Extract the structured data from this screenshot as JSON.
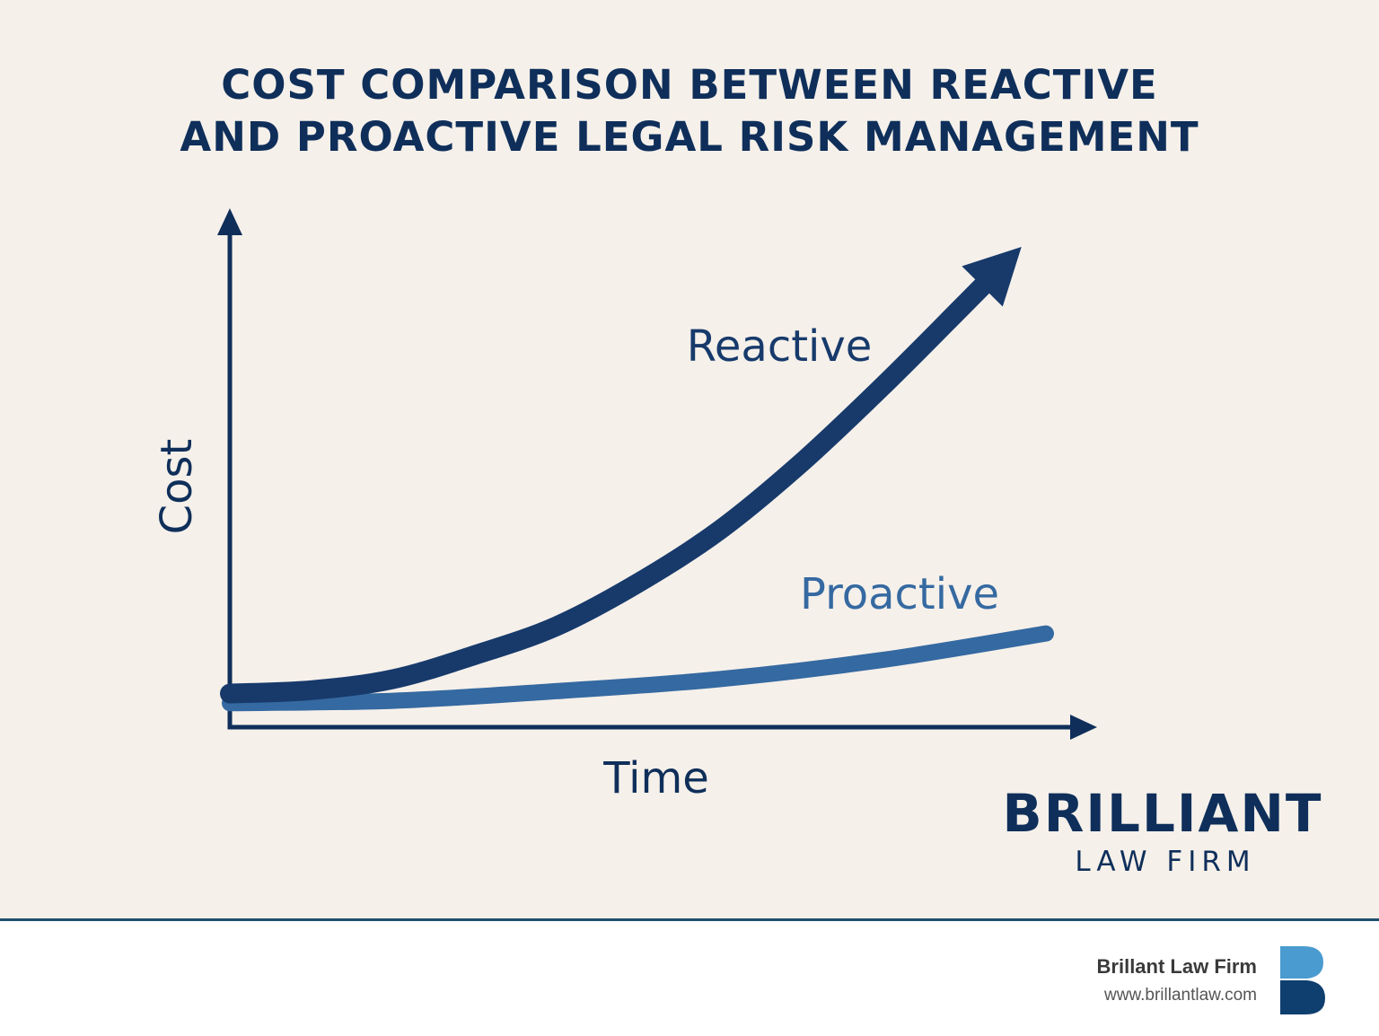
{
  "colors": {
    "background": "#f5f0ea",
    "navy": "#0f2f5a",
    "reactive": "#173a6b",
    "proactive": "#3569a1",
    "divider": "#1f4e6d",
    "logo_top": "#4a9bcf",
    "logo_bottom": "#0f3f6e"
  },
  "chart_data": {
    "type": "line",
    "title": "COST COMPARISON BETWEEN REACTIVE AND PROACTIVE LEGAL RISK MANAGEMENT",
    "title_lines": [
      "COST COMPARISON BETWEEN REACTIVE",
      "AND PROACTIVE LEGAL RISK MANAGEMENT"
    ],
    "xlabel": "Time",
    "ylabel": "Cost",
    "xlim": [
      0,
      1
    ],
    "ylim": [
      0,
      1
    ],
    "grid": false,
    "ticks": false,
    "series": [
      {
        "name": "Reactive",
        "x": [
          0,
          0.1,
          0.2,
          0.3,
          0.4,
          0.5,
          0.6,
          0.7,
          0.8,
          0.9,
          0.97
        ],
        "y": [
          0.07,
          0.077,
          0.1,
          0.15,
          0.21,
          0.3,
          0.41,
          0.55,
          0.71,
          0.88,
          1.0
        ],
        "arrow_end": true
      },
      {
        "name": "Proactive",
        "x": [
          0,
          0.2,
          0.4,
          0.6,
          0.8,
          1.0
        ],
        "y": [
          0.05,
          0.055,
          0.075,
          0.1,
          0.14,
          0.195
        ],
        "arrow_end": false
      }
    ]
  },
  "brand": {
    "name": "BRILLIANT",
    "subtitle": "LAW FIRM"
  },
  "footer": {
    "name": "Brillant Law Firm",
    "url": "www.brillantlaw.com",
    "logo_icon": "b-letter-logo-icon"
  }
}
